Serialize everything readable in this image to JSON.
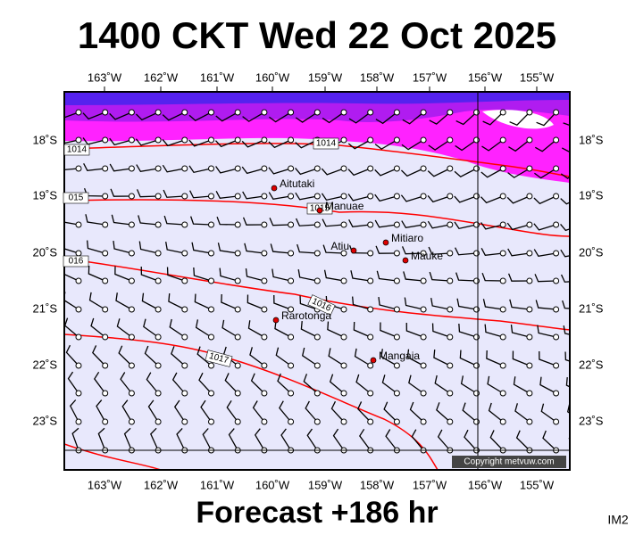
{
  "title": "1400 CKT Wed 22 Oct 2025",
  "footer": "Forecast +186 hr",
  "corner": "IM2",
  "longitudes": [
    "163˚W",
    "162˚W",
    "161˚W",
    "160˚W",
    "159˚W",
    "158˚W",
    "157˚W",
    "156˚W",
    "155˚W"
  ],
  "latitudes": [
    "18˚S",
    "19˚S",
    "20˚S",
    "21˚S",
    "22˚S",
    "23˚S"
  ],
  "isobars": [
    "1014",
    "1014",
    "015",
    "1015",
    "016",
    "1016",
    "1017"
  ],
  "places": [
    "Aitutaki",
    "Manuae",
    "Atiu",
    "Mitiaro",
    "Mauke",
    "Rarotonga",
    "Mangaia"
  ],
  "copyright": "Copyright metvuw.com"
}
